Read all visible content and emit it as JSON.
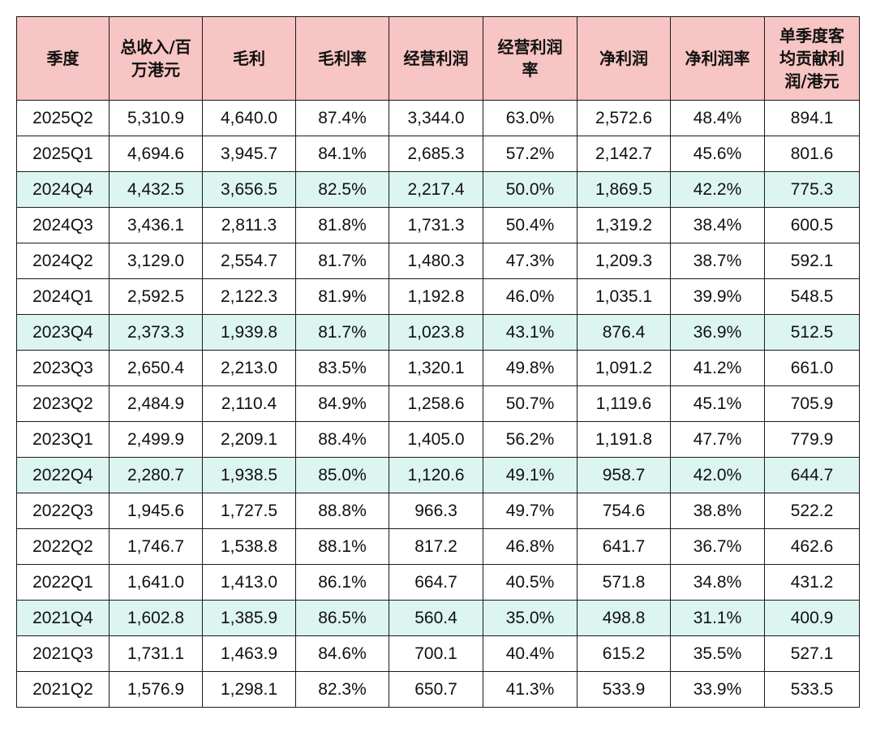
{
  "chart_data": {
    "type": "table",
    "colors": {
      "header_bg": "#f7c5c3",
      "highlight_bg": "#dcf5f1",
      "row_bg": "#ffffff"
    },
    "columns": [
      "季度",
      "总收入/百万港元",
      "毛利",
      "毛利率",
      "经营利润",
      "经营利润率",
      "净利润",
      "净利润率",
      "单季度客均贡献利润/港元"
    ],
    "header_lines": [
      [
        "季度"
      ],
      [
        "总收入/百",
        "万港元"
      ],
      [
        "毛利"
      ],
      [
        "毛利率"
      ],
      [
        "经营利润"
      ],
      [
        "经营利润",
        "率"
      ],
      [
        "净利润"
      ],
      [
        "净利润率"
      ],
      [
        "单季度客",
        "均贡献利",
        "润/港元"
      ]
    ],
    "rows": [
      {
        "cells": [
          "2025Q2",
          "5,310.9",
          "4,640.0",
          "87.4%",
          "3,344.0",
          "63.0%",
          "2,572.6",
          "48.4%",
          "894.1"
        ],
        "highlight": false
      },
      {
        "cells": [
          "2025Q1",
          "4,694.6",
          "3,945.7",
          "84.1%",
          "2,685.3",
          "57.2%",
          "2,142.7",
          "45.6%",
          "801.6"
        ],
        "highlight": false
      },
      {
        "cells": [
          "2024Q4",
          "4,432.5",
          "3,656.5",
          "82.5%",
          "2,217.4",
          "50.0%",
          "1,869.5",
          "42.2%",
          "775.3"
        ],
        "highlight": true
      },
      {
        "cells": [
          "2024Q3",
          "3,436.1",
          "2,811.3",
          "81.8%",
          "1,731.3",
          "50.4%",
          "1,319.2",
          "38.4%",
          "600.5"
        ],
        "highlight": false
      },
      {
        "cells": [
          "2024Q2",
          "3,129.0",
          "2,554.7",
          "81.7%",
          "1,480.3",
          "47.3%",
          "1,209.3",
          "38.7%",
          "592.1"
        ],
        "highlight": false
      },
      {
        "cells": [
          "2024Q1",
          "2,592.5",
          "2,122.3",
          "81.9%",
          "1,192.8",
          "46.0%",
          "1,035.1",
          "39.9%",
          "548.5"
        ],
        "highlight": false
      },
      {
        "cells": [
          "2023Q4",
          "2,373.3",
          "1,939.8",
          "81.7%",
          "1,023.8",
          "43.1%",
          "876.4",
          "36.9%",
          "512.5"
        ],
        "highlight": true
      },
      {
        "cells": [
          "2023Q3",
          "2,650.4",
          "2,213.0",
          "83.5%",
          "1,320.1",
          "49.8%",
          "1,091.2",
          "41.2%",
          "661.0"
        ],
        "highlight": false
      },
      {
        "cells": [
          "2023Q2",
          "2,484.9",
          "2,110.4",
          "84.9%",
          "1,258.6",
          "50.7%",
          "1,119.6",
          "45.1%",
          "705.9"
        ],
        "highlight": false
      },
      {
        "cells": [
          "2023Q1",
          "2,499.9",
          "2,209.1",
          "88.4%",
          "1,405.0",
          "56.2%",
          "1,191.8",
          "47.7%",
          "779.9"
        ],
        "highlight": false
      },
      {
        "cells": [
          "2022Q4",
          "2,280.7",
          "1,938.5",
          "85.0%",
          "1,120.6",
          "49.1%",
          "958.7",
          "42.0%",
          "644.7"
        ],
        "highlight": true
      },
      {
        "cells": [
          "2022Q3",
          "1,945.6",
          "1,727.5",
          "88.8%",
          "966.3",
          "49.7%",
          "754.6",
          "38.8%",
          "522.2"
        ],
        "highlight": false
      },
      {
        "cells": [
          "2022Q2",
          "1,746.7",
          "1,538.8",
          "88.1%",
          "817.2",
          "46.8%",
          "641.7",
          "36.7%",
          "462.6"
        ],
        "highlight": false
      },
      {
        "cells": [
          "2022Q1",
          "1,641.0",
          "1,413.0",
          "86.1%",
          "664.7",
          "40.5%",
          "571.8",
          "34.8%",
          "431.2"
        ],
        "highlight": false
      },
      {
        "cells": [
          "2021Q4",
          "1,602.8",
          "1,385.9",
          "86.5%",
          "560.4",
          "35.0%",
          "498.8",
          "31.1%",
          "400.9"
        ],
        "highlight": true
      },
      {
        "cells": [
          "2021Q3",
          "1,731.1",
          "1,463.9",
          "84.6%",
          "700.1",
          "40.4%",
          "615.2",
          "35.5%",
          "527.1"
        ],
        "highlight": false
      },
      {
        "cells": [
          "2021Q2",
          "1,576.9",
          "1,298.1",
          "82.3%",
          "650.7",
          "41.3%",
          "533.9",
          "33.9%",
          "533.5"
        ],
        "highlight": false
      }
    ]
  }
}
